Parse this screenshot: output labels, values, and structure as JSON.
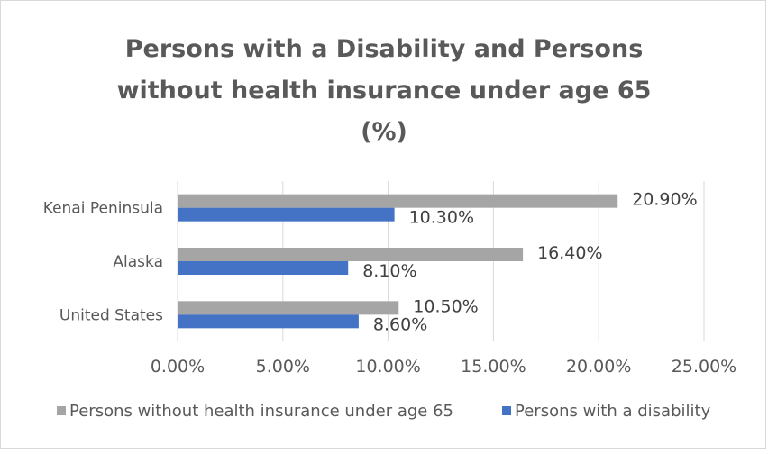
{
  "chart_data": {
    "type": "bar",
    "orientation": "horizontal",
    "title_lines": [
      "Persons with a Disability and Persons",
      "without health insurance under age 65",
      "(%)"
    ],
    "categories": [
      "United States",
      "Alaska",
      "Kenai Peninsula"
    ],
    "series": [
      {
        "name": "Persons without health insurance under age 65",
        "values": [
          10.5,
          16.4,
          20.9
        ],
        "labels": [
          "10.50%",
          "16.40%",
          "20.90%"
        ],
        "color": "#a5a5a5"
      },
      {
        "name": "Persons with a disability",
        "values": [
          8.6,
          8.1,
          10.3
        ],
        "labels": [
          "8.60%",
          "8.10%",
          "10.30%"
        ],
        "color": "#4472c4"
      }
    ],
    "xlim": [
      0,
      25
    ],
    "xticks": [
      0,
      5,
      10,
      15,
      20,
      25
    ],
    "xtick_labels": [
      "0.00%",
      "5.00%",
      "10.00%",
      "15.00%",
      "20.00%",
      "25.00%"
    ],
    "grid": true,
    "legend_position": "bottom",
    "gridline_color": "#d9d9d9"
  }
}
